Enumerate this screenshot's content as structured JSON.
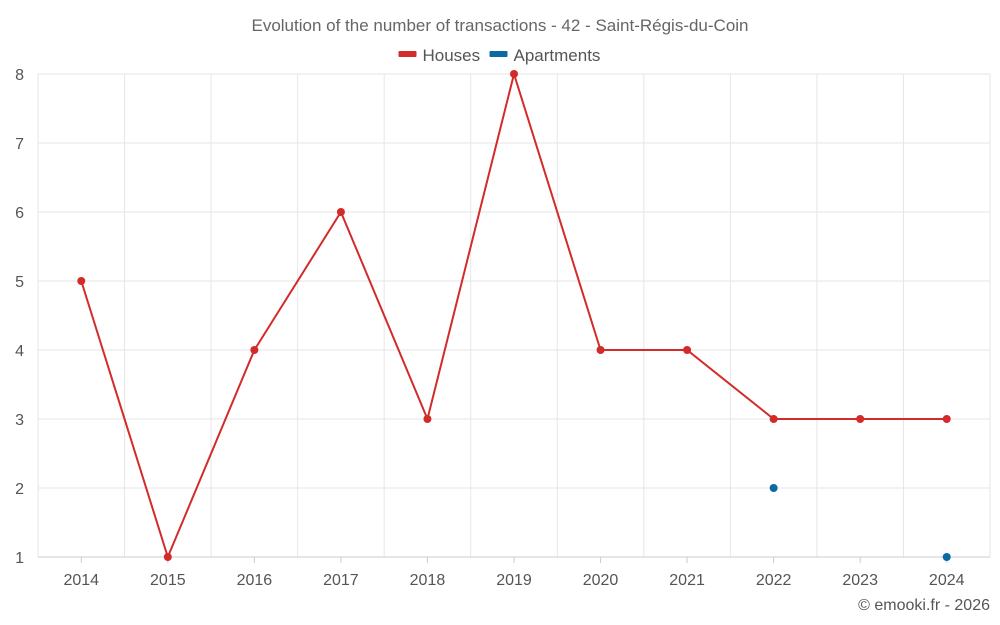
{
  "chart_data": {
    "type": "line",
    "title": "Evolution of the number of transactions - 42 - Saint-Régis-du-Coin",
    "categories": [
      "2014",
      "2015",
      "2016",
      "2017",
      "2018",
      "2019",
      "2020",
      "2021",
      "2022",
      "2023",
      "2024"
    ],
    "ylim": [
      1,
      8
    ],
    "yticks": [
      1,
      2,
      3,
      4,
      5,
      6,
      7,
      8
    ],
    "grid": true,
    "legend_position": "top-center",
    "series": [
      {
        "name": "Houses",
        "color": "#d32a2a",
        "values": [
          5,
          1,
          4,
          6,
          3,
          8,
          4,
          4,
          3,
          3,
          3
        ]
      },
      {
        "name": "Apartments",
        "color": "#0a6aa1",
        "values": [
          null,
          null,
          null,
          null,
          null,
          null,
          null,
          null,
          2,
          null,
          1
        ]
      }
    ],
    "credit": "© emooki.fr - 2026"
  }
}
